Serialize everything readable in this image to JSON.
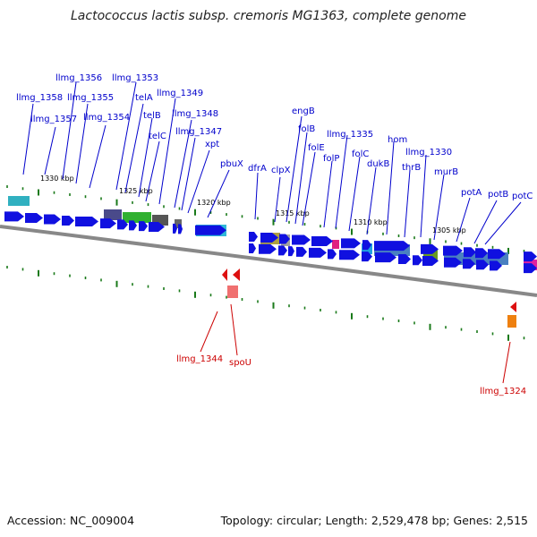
{
  "title": "Lactococcus lactis subsp. cremoris MG1363, complete genome",
  "footer": {
    "accession": "Accession: NC_009004",
    "summary": "Topology: circular; Length: 2,529,478 bp; Genes: 2,515"
  },
  "colors": {
    "backbone": "#888888",
    "gene_blue": "#1010e0",
    "label_blue": "#0000cc",
    "label_red": "#cc0000",
    "tick_green": "#1a7a1a"
  },
  "scale_labels": [
    "1330 kbp",
    "1325 kbp",
    "1320 kbp",
    "1315 kbp",
    "1310 kbp",
    "1305 kbp"
  ],
  "top_labels": [
    "llmg_1356",
    "llmg_1353",
    "llmg_1358",
    "llmg_1355",
    "telA",
    "llmg_1349",
    "llmg_1357",
    "llmg_1354",
    "telB",
    "llmg_1348",
    "telC",
    "llmg_1347",
    "xpt",
    "pbuX",
    "dfrA",
    "clpX",
    "engB",
    "folB",
    "llmg_1335",
    "folE",
    "folP",
    "folC",
    "dukB",
    "hom",
    "llmg_1330",
    "thrB",
    "murB",
    "potA",
    "potB",
    "potC"
  ],
  "bottom_labels": [
    "llmg_1344",
    "spoU",
    "llmg_1324"
  ]
}
